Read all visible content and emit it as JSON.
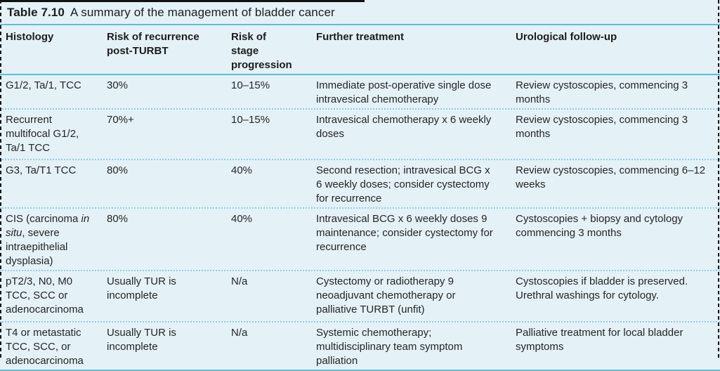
{
  "table": {
    "label": "Table 7.10",
    "title": "A summary of the management of bladder cancer",
    "columns": [
      "Histology",
      "Risk of recurrence post-TURBT",
      "Risk of stage progression",
      "Further treatment",
      "Urological follow-up"
    ],
    "rows": [
      {
        "histology": "G1/2, Ta/1, TCC",
        "recurrence": "30%",
        "progression": "10–15%",
        "treatment": "Immediate post-operative single dose intravesical chemotherapy",
        "followup": "Review cystoscopies, commencing 3 months"
      },
      {
        "histology": "Recurrent multifocal G1/2, Ta/1 TCC",
        "recurrence": "70%+",
        "progression": "10–15%",
        "treatment": "Intravesical chemotherapy x 6 weekly doses",
        "followup": "Review cystoscopies, commencing 3 months"
      },
      {
        "histology": "G3, Ta/T1 TCC",
        "recurrence": "80%",
        "progression": "40%",
        "treatment": "Second resection; intravesical BCG x 6 weekly doses; consider cystectomy for recurrence",
        "followup": "Review cystoscopies, commencing 6–12 weeks"
      },
      {
        "histology_pre": "CIS (carcinoma ",
        "histology_italic": "in situ",
        "histology_post": ", severe intraepithelial dysplasia)",
        "recurrence": "80%",
        "progression": "40%",
        "treatment": "Intravesical BCG x 6 weekly doses 9 maintenance; consider cystectomy for recurrence",
        "followup": "Cystoscopies + biopsy and cytology commencing 3 months"
      },
      {
        "histology": "pT2/3, N0, M0 TCC, SCC or adenocarcinoma",
        "recurrence": "Usually TUR is incomplete",
        "progression": "N/a",
        "treatment": "Cystectomy or radiotherapy 9 neoadjuvant chemotherapy or palliative TURBT (unfit)",
        "followup": "Cystoscopies if bladder is preserved. Urethral washings for cytology."
      },
      {
        "histology": "T4 or metastatic TCC, SCC, or adenocarcinoma",
        "recurrence": "Usually TUR is incomplete",
        "progression": "N/a",
        "treatment": "Systemic chemotherapy; multidisciplinary team symptom palliation",
        "followup": "Palliative treatment for local bladder symptoms"
      }
    ]
  },
  "colors": {
    "background": "#e4f1f7",
    "rule": "#63bcd6",
    "dotted_rule": "#8fd0e3",
    "text": "#262626",
    "page_border": "#111111"
  }
}
